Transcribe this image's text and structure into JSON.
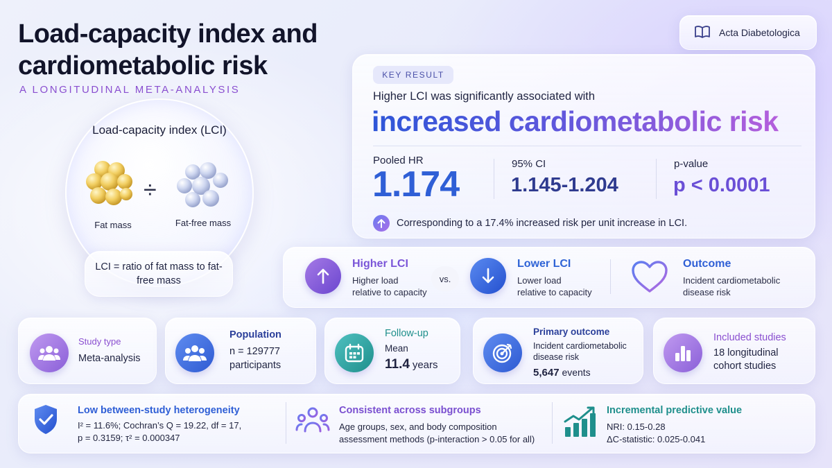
{
  "header": {
    "title": "Load-capacity index and cardiometabolic risk",
    "subtitle": "A LONGITUDINAL META-ANALYSIS"
  },
  "journal": {
    "name": "Acta Diabetologica",
    "icon": "book-icon"
  },
  "lci": {
    "title": "Load-capacity index (LCI)",
    "fat_mass_label": "Fat mass",
    "fat_free_mass_label": "Fat-free mass",
    "operator": "÷",
    "definition": "LCI = ratio of fat mass to fat-free mass"
  },
  "key_result": {
    "chip": "KEY RESULT",
    "lead": "Higher LCI was significantly associated with",
    "headline": "increased cardiometabolic risk",
    "pooled_hr_label": "Pooled HR",
    "pooled_hr_value": "1.174",
    "ci_label": "95% CI",
    "ci_value": "1.145-1.204",
    "p_label": "p-value",
    "p_value": "p < 0.0001",
    "footnote": "Corresponding to a 17.4% increased risk per unit increase in LCI."
  },
  "comparison": {
    "higher": {
      "title": "Higher LCI",
      "line1": "Higher load",
      "line2": "relative to capacity",
      "color": "#7a55d8"
    },
    "vs": "vs.",
    "lower": {
      "title": "Lower LCI",
      "line1": "Lower load",
      "line2": "relative to capacity",
      "color": "#2f63d6"
    },
    "outcome": {
      "title": "Outcome",
      "line1": "Incident cardiometabolic",
      "line2": "disease risk",
      "color": "#2f5fd6"
    }
  },
  "study": {
    "type": {
      "label": "Study type",
      "value": "Meta-analysis",
      "icon": "people-group-icon"
    },
    "population": {
      "label": "Population",
      "value_line1": "n = 129777",
      "value_line2": "participants",
      "icon": "population-icon"
    },
    "followup": {
      "label": "Follow-up",
      "line1": "Mean",
      "big": "11.4",
      "unit": "years",
      "icon": "calendar-icon"
    },
    "primary": {
      "label": "Primary outcome",
      "line1": "Incident cardiometabolic",
      "line2": "disease risk",
      "events": "5,647",
      "events_unit": "events",
      "icon": "target-icon"
    },
    "included": {
      "label": "Included studies",
      "line1": "18 longitudinal",
      "line2": "cohort studies",
      "icon": "bar-chart-icon"
    }
  },
  "bottom": {
    "heterogeneity": {
      "title": "Low between-study heterogeneity",
      "line1": "I² = 11.6%; Cochran’s Q = 19.22, df = 17,",
      "line2": "p = 0.3159; τ² = 0.000347",
      "icon": "shield-check-icon"
    },
    "subgroups": {
      "title": "Consistent across subgroups",
      "line1": "Age groups, sex, and body composition",
      "line2": "assessment methods (p-interaction > 0.05 for all)",
      "icon": "people-network-icon"
    },
    "predictive": {
      "title": "Incremental predictive value",
      "line1": "NRI: 0.15-0.28",
      "line2": "ΔC-statistic: 0.025-0.041",
      "icon": "growth-chart-icon"
    }
  },
  "colors": {
    "accent_purple": "#8a4fd0",
    "accent_blue": "#2f5fd6",
    "teal": "#1f8f8c"
  }
}
